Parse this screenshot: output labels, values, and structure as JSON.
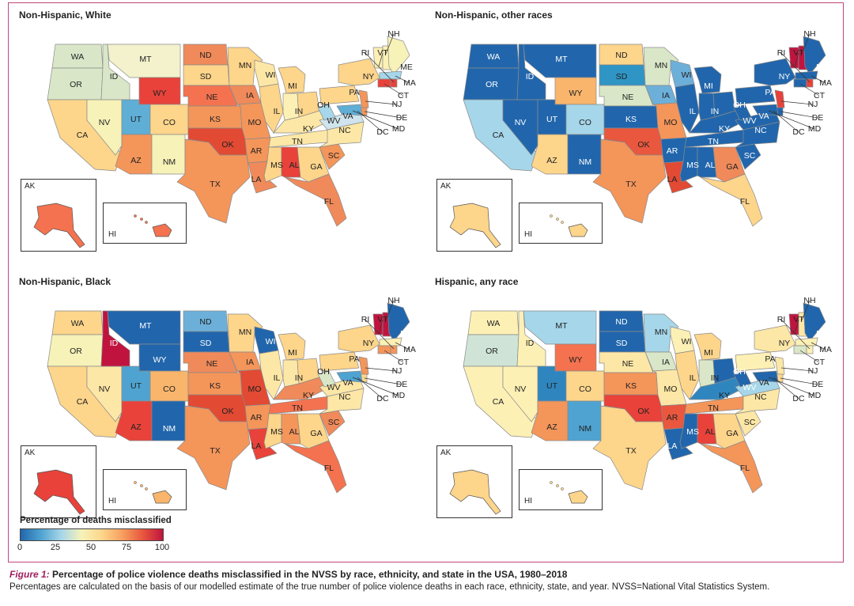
{
  "legend": {
    "title": "Percentage of deaths misclassified",
    "ticks": [
      "0",
      "25",
      "50",
      "75",
      "100"
    ],
    "colors": [
      "#2166ac",
      "#4fa3d1",
      "#a6d6e9",
      "#f6f2b8",
      "#fdd58b",
      "#f7a05f",
      "#e8573e",
      "#c0143f"
    ]
  },
  "caption": {
    "figure_label": "Figure 1:",
    "title": "Percentage of police violence deaths misclassified in the NVSS by race, ethnicity, and state in the USA, 1980–2018",
    "note": "Percentages are calculated on the basis of our modelled estimate of the true number of police violence deaths in each race, ethnicity, state, and year. NVSS=National Vital Statistics System."
  },
  "panels": [
    {
      "title": "Non-Hispanic, White",
      "inset_ak": "AK",
      "inset_hi": "HI",
      "colors": {
        "WA": "#d9e7c8",
        "OR": "#d9e7c8",
        "CA": "#fdd58b",
        "NV": "#f6f2b8",
        "ID": "#d9e7c8",
        "MT": "#f3f2cc",
        "WY": "#e8423a",
        "UT": "#5eaed6",
        "CO": "#fdd58b",
        "AZ": "#f4955a",
        "NM": "#f6f2b8",
        "ND": "#f08a5a",
        "SD": "#fdd58b",
        "NE": "#f4724f",
        "KS": "#f4955a",
        "OK": "#e24a33",
        "TX": "#f4955a",
        "MN": "#fdd58b",
        "IA": "#f08a5a",
        "MO": "#f4955a",
        "AR": "#f4955a",
        "LA": "#f08a5a",
        "WI": "#fde7a6",
        "IL": "#fdd58b",
        "MI": "#fdd58b",
        "IN": "#fdf0b5",
        "OH": "#fdd58b",
        "KY": "#fde7a6",
        "TN": "#fde7a6",
        "MS": "#fdd58b",
        "AL": "#e8423a",
        "GA": "#fdd58b",
        "FL": "#f08a5a",
        "SC": "#f4955a",
        "NC": "#fde7a6",
        "VA": "#cfe4ec",
        "WV": "#a6d6e9",
        "PA": "#fdd58b",
        "NY": "#fdd58b",
        "VT": "#fdf0b5",
        "NH": "#fdf0b5",
        "ME": "#f6f2b8",
        "MA": "#a6d6e9",
        "CT": "#e8423a",
        "RI": "#e8423a",
        "NJ": "#f4955a",
        "DE": "#f4955a",
        "MD": "#5eaed6",
        "AK": "#f4724f",
        "HI": "#f4724f"
      }
    },
    {
      "title": "Non-Hispanic, other races",
      "inset_ak": "AK",
      "inset_hi": "HI",
      "colors": {
        "WA": "#2166ac",
        "OR": "#2166ac",
        "CA": "#a6d6e9",
        "NV": "#2166ac",
        "ID": "#2166ac",
        "MT": "#2166ac",
        "WY": "#f8b56b",
        "UT": "#2166ac",
        "CO": "#a6d6e9",
        "AZ": "#fdd58b",
        "NM": "#2166ac",
        "ND": "#fdd58b",
        "SD": "#2f95c5",
        "NE": "#d9e7c8",
        "KS": "#2166ac",
        "OK": "#e8573e",
        "TX": "#f4955a",
        "MN": "#d9e7c8",
        "IA": "#6cb0da",
        "MO": "#f4955a",
        "AR": "#2166ac",
        "LA": "#e24a33",
        "WI": "#6cb0da",
        "IL": "#2166ac",
        "MI": "#2166ac",
        "IN": "#2166ac",
        "OH": "#2166ac",
        "KY": "#2166ac",
        "TN": "#2166ac",
        "MS": "#2166ac",
        "AL": "#2166ac",
        "GA": "#f08a5a",
        "FL": "#fdd58b",
        "SC": "#2166ac",
        "NC": "#2166ac",
        "VA": "#2166ac",
        "WV": "#2166ac",
        "PA": "#2166ac",
        "NY": "#2166ac",
        "VT": "#c0143f",
        "NH": "#c0143f",
        "ME": "#2166ac",
        "MA": "#2166ac",
        "CT": "#2166ac",
        "RI": "#e8423a",
        "NJ": "#e8423a",
        "DE": "#2166ac",
        "MD": "#2166ac",
        "AK": "#fdd58b",
        "HI": "#fdd58b"
      }
    },
    {
      "title": "Non-Hispanic, Black",
      "inset_ak": "AK",
      "inset_hi": "HI",
      "colors": {
        "WA": "#fdd58b",
        "OR": "#f6f2b8",
        "CA": "#fdd58b",
        "NV": "#fde7a6",
        "ID": "#c0143f",
        "MT": "#2166ac",
        "WY": "#2166ac",
        "UT": "#4fa3d1",
        "CO": "#f8b56b",
        "AZ": "#e8423a",
        "NM": "#2166ac",
        "ND": "#6cb0da",
        "SD": "#2166ac",
        "NE": "#f08a5a",
        "KS": "#f4955a",
        "OK": "#e24a33",
        "TX": "#f4955a",
        "MN": "#fdd58b",
        "IA": "#f4955a",
        "MO": "#e24a33",
        "AR": "#f4955a",
        "LA": "#e8423a",
        "WI": "#2166ac",
        "IL": "#fde7a6",
        "MI": "#fdd58b",
        "IN": "#fde7a6",
        "OH": "#fdd58b",
        "KY": "#f08a5a",
        "TN": "#f4724f",
        "MS": "#fdd58b",
        "AL": "#f4955a",
        "GA": "#fdd58b",
        "FL": "#f4724f",
        "SC": "#f08a5a",
        "NC": "#fde7a6",
        "VA": "#fde7a6",
        "WV": "#d9e7c8",
        "PA": "#fdd58b",
        "NY": "#fdd58b",
        "VT": "#c0143f",
        "NH": "#c0143f",
        "ME": "#2166ac",
        "MA": "#fdf0b5",
        "CT": "#f4955a",
        "RI": "#f4955a",
        "NJ": "#f4955a",
        "DE": "#fdd58b",
        "MD": "#4fa3d1",
        "AK": "#e8423a",
        "HI": "#f8b56b"
      }
    },
    {
      "title": "Hispanic, any race",
      "inset_ak": "AK",
      "inset_hi": "HI",
      "colors": {
        "WA": "#fdf0b5",
        "OR": "#cfe4d6",
        "CA": "#fdf0b5",
        "NV": "#fdf0b5",
        "ID": "#fdf0b5",
        "MT": "#a6d6e9",
        "WY": "#f4724f",
        "UT": "#2f86bf",
        "CO": "#fdd58b",
        "AZ": "#f4955a",
        "NM": "#4fa3d1",
        "ND": "#2166ac",
        "SD": "#2166ac",
        "NE": "#fde7a6",
        "KS": "#f4955a",
        "OK": "#e8423a",
        "TX": "#fdd58b",
        "MN": "#a6d6e9",
        "IA": "#d9e7c8",
        "MO": "#fde7a6",
        "AR": "#e8573e",
        "LA": "#2166ac",
        "WI": "#fdf0b5",
        "IL": "#fdd58b",
        "MI": "#fdd58b",
        "IN": "#d9e7c8",
        "OH": "#2166ac",
        "KY": "#2f86bf",
        "TN": "#f4955a",
        "MS": "#2166ac",
        "AL": "#e8423a",
        "GA": "#fdd58b",
        "FL": "#f4955a",
        "SC": "#fde7a6",
        "NC": "#fde7a6",
        "VA": "#a6d6e9",
        "WV": "#2166ac",
        "PA": "#fdf0b5",
        "NY": "#fde7a6",
        "VT": "#c0143f",
        "NH": "#fde7a6",
        "ME": "#2166ac",
        "MA": "#fdf0b5",
        "CT": "#d9e7c8",
        "RI": "#fdf0b5",
        "NJ": "#fde7a6",
        "DE": "#fdd58b",
        "MD": "#2166ac",
        "AK": "#fdd58b",
        "HI": "#fdd58b"
      }
    }
  ]
}
